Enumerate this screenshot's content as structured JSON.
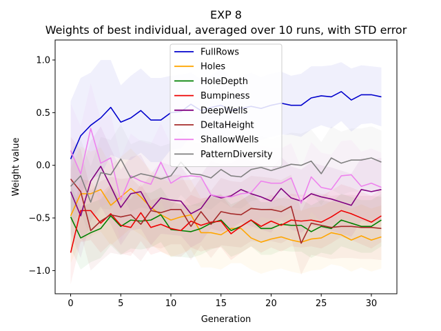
{
  "chart_data": {
    "type": "line",
    "title": "EXP 8",
    "subtitle": "Weights of best individual, averaged over 10 runs, with STD error",
    "xlabel": "Generation",
    "ylabel": "Weight value",
    "xlim": [
      -1.55,
      32.55
    ],
    "ylim": [
      -1.22,
      1.19
    ],
    "x_ticks": [
      0,
      5,
      10,
      15,
      20,
      25,
      30
    ],
    "y_ticks": [
      -1.0,
      -0.5,
      0.0,
      0.5,
      1.0
    ],
    "x_tick_labels": [
      "0",
      "5",
      "10",
      "15",
      "20",
      "25",
      "30"
    ],
    "y_tick_labels": [
      "−1.0",
      "−0.5",
      "0.0",
      "0.5",
      "1.0"
    ],
    "legend_position": "top-center",
    "x": [
      0,
      1,
      2,
      3,
      4,
      5,
      6,
      7,
      8,
      9,
      10,
      11,
      12,
      13,
      14,
      15,
      16,
      17,
      18,
      19,
      20,
      21,
      22,
      23,
      24,
      25,
      26,
      27,
      28,
      29,
      30,
      31
    ],
    "series": [
      {
        "name": "FullRows",
        "color": "#0000cc",
        "values": [
          0.06,
          0.28,
          0.38,
          0.45,
          0.55,
          0.41,
          0.45,
          0.52,
          0.43,
          0.43,
          0.5,
          0.51,
          0.58,
          0.52,
          0.55,
          0.57,
          0.52,
          0.54,
          0.56,
          0.54,
          0.57,
          0.59,
          0.57,
          0.57,
          0.64,
          0.66,
          0.65,
          0.7,
          0.62,
          0.67,
          0.67,
          0.65
        ],
        "err": [
          0.55,
          0.55,
          0.5,
          0.55,
          0.45,
          0.35,
          0.4,
          0.4,
          0.4,
          0.4,
          0.35,
          0.35,
          0.3,
          0.3,
          0.3,
          0.35,
          0.32,
          0.3,
          0.32,
          0.3,
          0.3,
          0.3,
          0.28,
          0.3,
          0.3,
          0.28,
          0.3,
          0.28,
          0.3,
          0.28,
          0.27,
          0.28
        ]
      },
      {
        "name": "Holes",
        "color": "#ffa500",
        "values": [
          -0.48,
          -0.27,
          -0.27,
          -0.23,
          -0.38,
          -0.3,
          -0.22,
          -0.3,
          -0.4,
          -0.47,
          -0.52,
          -0.49,
          -0.47,
          -0.64,
          -0.64,
          -0.66,
          -0.6,
          -0.6,
          -0.69,
          -0.73,
          -0.7,
          -0.68,
          -0.71,
          -0.73,
          -0.7,
          -0.69,
          -0.64,
          -0.66,
          -0.71,
          -0.67,
          -0.71,
          -0.68
        ],
        "err": [
          0.45,
          0.45,
          0.4,
          0.4,
          0.38,
          0.38,
          0.38,
          0.36,
          0.35,
          0.35,
          0.35,
          0.35,
          0.33,
          0.33,
          0.33,
          0.33,
          0.33,
          0.33,
          0.3,
          0.3,
          0.3,
          0.3,
          0.3,
          0.3,
          0.3,
          0.3,
          0.3,
          0.3,
          0.3,
          0.3,
          0.3,
          0.3
        ]
      },
      {
        "name": "HoleDepth",
        "color": "#008000",
        "values": [
          -0.49,
          -0.69,
          -0.64,
          -0.6,
          -0.48,
          -0.58,
          -0.52,
          -0.53,
          -0.52,
          -0.47,
          -0.61,
          -0.62,
          -0.63,
          -0.6,
          -0.55,
          -0.52,
          -0.62,
          -0.58,
          -0.52,
          -0.6,
          -0.6,
          -0.56,
          -0.57,
          -0.57,
          -0.63,
          -0.58,
          -0.6,
          -0.52,
          -0.55,
          -0.58,
          -0.58,
          -0.52
        ],
        "err": [
          0.3,
          0.3,
          0.28,
          0.28,
          0.28,
          0.27,
          0.27,
          0.27,
          0.26,
          0.26,
          0.26,
          0.25,
          0.25,
          0.25,
          0.25,
          0.25,
          0.25,
          0.25,
          0.25,
          0.25,
          0.25,
          0.25,
          0.25,
          0.25,
          0.25,
          0.25,
          0.25,
          0.25,
          0.25,
          0.25,
          0.25,
          0.25
        ]
      },
      {
        "name": "Bumpiness",
        "color": "#ee0000",
        "values": [
          -0.83,
          -0.43,
          -0.43,
          -0.55,
          -0.46,
          -0.57,
          -0.59,
          -0.45,
          -0.59,
          -0.56,
          -0.6,
          -0.62,
          -0.53,
          -0.57,
          -0.54,
          -0.53,
          -0.65,
          -0.58,
          -0.52,
          -0.58,
          -0.53,
          -0.57,
          -0.52,
          -0.53,
          -0.52,
          -0.54,
          -0.49,
          -0.43,
          -0.46,
          -0.5,
          -0.54,
          -0.48
        ],
        "err": [
          0.3,
          0.3,
          0.28,
          0.28,
          0.28,
          0.27,
          0.27,
          0.27,
          0.26,
          0.26,
          0.26,
          0.25,
          0.25,
          0.25,
          0.25,
          0.25,
          0.25,
          0.25,
          0.25,
          0.25,
          0.25,
          0.25,
          0.25,
          0.25,
          0.25,
          0.25,
          0.25,
          0.25,
          0.25,
          0.25,
          0.25,
          0.25
        ]
      },
      {
        "name": "DeepWells",
        "color": "#800080",
        "values": [
          -0.25,
          -0.48,
          -0.15,
          -0.01,
          -0.2,
          -0.4,
          -0.27,
          -0.25,
          -0.42,
          -0.31,
          -0.33,
          -0.34,
          -0.46,
          -0.41,
          -0.28,
          -0.31,
          -0.29,
          -0.23,
          -0.27,
          -0.3,
          -0.34,
          -0.22,
          -0.31,
          -0.34,
          -0.27,
          -0.3,
          -0.32,
          -0.35,
          -0.38,
          -0.23,
          -0.25,
          -0.23
        ],
        "err": [
          0.4,
          0.4,
          0.38,
          0.38,
          0.36,
          0.36,
          0.35,
          0.35,
          0.34,
          0.34,
          0.33,
          0.33,
          0.32,
          0.32,
          0.32,
          0.32,
          0.31,
          0.31,
          0.31,
          0.31,
          0.3,
          0.3,
          0.3,
          0.3,
          0.3,
          0.3,
          0.3,
          0.3,
          0.3,
          0.3,
          0.3,
          0.3
        ]
      },
      {
        "name": "DeltaHeight",
        "color": "#a52a2a",
        "values": [
          -0.13,
          -0.25,
          -0.62,
          -0.53,
          -0.47,
          -0.49,
          -0.47,
          -0.56,
          -0.43,
          -0.45,
          -0.42,
          -0.42,
          -0.58,
          -0.44,
          -0.56,
          -0.44,
          -0.46,
          -0.47,
          -0.41,
          -0.42,
          -0.42,
          -0.44,
          -0.39,
          -0.74,
          -0.55,
          -0.57,
          -0.59,
          -0.58,
          -0.58,
          -0.59,
          -0.59,
          -0.6
        ],
        "err": [
          0.4,
          0.4,
          0.38,
          0.38,
          0.36,
          0.36,
          0.35,
          0.35,
          0.34,
          0.34,
          0.33,
          0.33,
          0.32,
          0.32,
          0.32,
          0.32,
          0.31,
          0.31,
          0.31,
          0.31,
          0.3,
          0.3,
          0.3,
          0.3,
          0.3,
          0.3,
          0.3,
          0.3,
          0.3,
          0.3,
          0.3,
          0.3
        ]
      },
      {
        "name": "ShallowWells",
        "color": "#ee82ee",
        "values": [
          0.14,
          -0.08,
          0.35,
          0.02,
          0.07,
          -0.33,
          -0.1,
          -0.15,
          -0.18,
          0.03,
          -0.17,
          -0.11,
          -0.1,
          -0.11,
          -0.28,
          -0.3,
          -0.3,
          -0.27,
          -0.26,
          -0.15,
          -0.17,
          -0.17,
          -0.12,
          -0.36,
          -0.11,
          -0.21,
          -0.23,
          -0.1,
          -0.09,
          -0.2,
          -0.17,
          -0.21
        ],
        "err": [
          0.45,
          0.45,
          0.43,
          0.42,
          0.42,
          0.4,
          0.4,
          0.38,
          0.38,
          0.37,
          0.37,
          0.36,
          0.36,
          0.35,
          0.35,
          0.35,
          0.35,
          0.34,
          0.34,
          0.34,
          0.34,
          0.33,
          0.33,
          0.33,
          0.33,
          0.33,
          0.33,
          0.33,
          0.33,
          0.33,
          0.33,
          0.33
        ]
      },
      {
        "name": "PatternDiversity",
        "color": "#808080",
        "values": [
          -0.2,
          -0.1,
          -0.35,
          -0.07,
          -0.09,
          0.06,
          -0.12,
          -0.08,
          -0.1,
          -0.13,
          -0.1,
          0.03,
          -0.08,
          -0.09,
          -0.12,
          -0.04,
          -0.1,
          -0.11,
          -0.04,
          -0.02,
          -0.05,
          -0.02,
          0.01,
          0.0,
          0.04,
          -0.08,
          0.07,
          0.02,
          0.05,
          0.05,
          0.07,
          0.03
        ],
        "err": [
          0.35,
          0.35,
          0.34,
          0.34,
          0.33,
          0.33,
          0.32,
          0.32,
          0.32,
          0.31,
          0.31,
          0.31,
          0.3,
          0.3,
          0.3,
          0.3,
          0.3,
          0.3,
          0.3,
          0.3,
          0.3,
          0.3,
          0.3,
          0.3,
          0.3,
          0.3,
          0.3,
          0.3,
          0.3,
          0.3,
          0.3,
          0.3
        ]
      }
    ]
  }
}
